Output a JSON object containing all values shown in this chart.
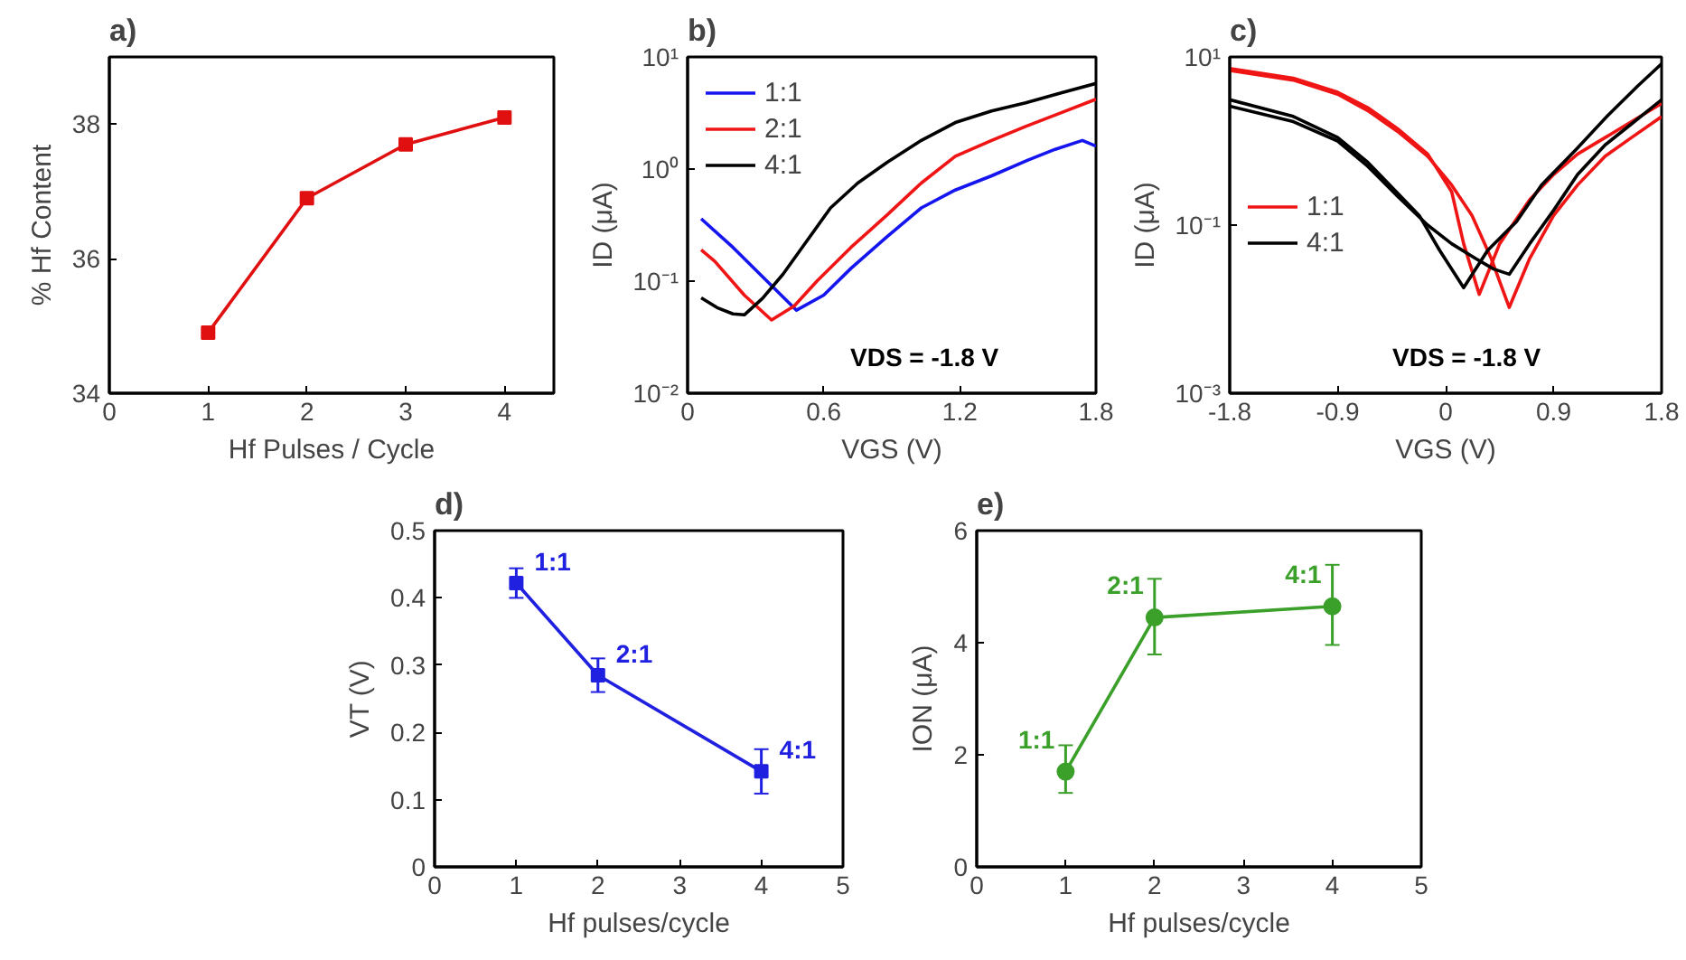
{
  "chart_data": [
    {
      "type": "line",
      "title": "a)",
      "xlabel": "Hf Pulses / Cycle",
      "ylabel": "% Hf Content",
      "x": [
        1,
        2,
        3,
        4
      ],
      "xlim": [
        0,
        4.5
      ],
      "ylim": [
        34,
        39
      ],
      "xticks": [
        0,
        1,
        2,
        3,
        4
      ],
      "yticks": [
        34,
        36,
        38
      ],
      "marker": "square",
      "grid": false,
      "legend": false,
      "series": [
        {
          "color": "#e01010",
          "values": [
            34.9,
            36.9,
            37.7,
            38.1
          ]
        }
      ]
    },
    {
      "type": "line",
      "title": "b)",
      "xlabel": "VGS (V)",
      "ylabel": "ID (μA)",
      "log": "y",
      "xlim": [
        0,
        1.8
      ],
      "ylim": [
        0.01,
        10
      ],
      "xticks": [
        0,
        0.6,
        1.2,
        1.8
      ],
      "yticks": [
        {
          "value": 0.01,
          "label": "10⁻²"
        },
        {
          "value": 0.1,
          "label": "10⁻¹"
        },
        {
          "value": 1,
          "label": "10⁰"
        },
        {
          "value": 10,
          "label": "10¹"
        }
      ],
      "legend": "top left",
      "grid": false,
      "marker": "none",
      "annotations": [
        "VDS = -1.8 V"
      ],
      "series": [
        {
          "name": "1:1",
          "color": "#1515f0",
          "x": [
            0.06,
            0.2,
            0.35,
            0.48,
            0.6,
            0.72,
            0.88,
            1.03,
            1.18,
            1.34,
            1.5,
            1.62,
            1.74,
            1.8
          ],
          "values": [
            0.36,
            0.2,
            0.1,
            0.055,
            0.075,
            0.13,
            0.25,
            0.45,
            0.65,
            0.87,
            1.2,
            1.5,
            1.8,
            1.6
          ]
        },
        {
          "name": "2:1",
          "color": "#f01515",
          "x": [
            0.06,
            0.12,
            0.25,
            0.37,
            0.47,
            0.57,
            0.72,
            0.88,
            1.03,
            1.18,
            1.34,
            1.49,
            1.65,
            1.8
          ],
          "values": [
            0.19,
            0.15,
            0.075,
            0.045,
            0.06,
            0.1,
            0.2,
            0.39,
            0.75,
            1.3,
            1.8,
            2.4,
            3.2,
            4.2
          ]
        },
        {
          "name": "4:1",
          "color": "#000000",
          "x": [
            0.06,
            0.13,
            0.2,
            0.25,
            0.33,
            0.42,
            0.52,
            0.63,
            0.75,
            0.88,
            1.03,
            1.18,
            1.34,
            1.49,
            1.65,
            1.8
          ],
          "values": [
            0.071,
            0.058,
            0.051,
            0.05,
            0.07,
            0.115,
            0.22,
            0.45,
            0.75,
            1.15,
            1.8,
            2.6,
            3.3,
            3.9,
            4.8,
            5.8
          ]
        }
      ]
    },
    {
      "type": "line",
      "title": "c)",
      "xlabel": "VGS (V)",
      "ylabel": "ID (μA)",
      "log": "y",
      "xlim": [
        -1.8,
        1.8
      ],
      "ylim": [
        0.001,
        10
      ],
      "xticks": [
        -1.8,
        -0.9,
        0,
        0.9,
        1.8
      ],
      "yticks": [
        {
          "value": 0.001,
          "label": "10⁻³"
        },
        {
          "value": 0.1,
          "label": "10⁻¹"
        },
        {
          "value": 10,
          "label": "10¹"
        }
      ],
      "legend": "left",
      "grid": false,
      "marker": "none",
      "annotations": [
        "VDS = -1.8 V"
      ],
      "series": [
        {
          "name": "1:1",
          "color": "#f01515",
          "x": [
            -1.8,
            -1.27,
            -0.9,
            -0.65,
            -0.4,
            -0.15,
            0.05,
            0.22,
            0.38,
            0.53,
            0.7,
            0.9,
            1.1,
            1.33,
            1.55,
            1.8
          ],
          "values": [
            6.9,
            5.3,
            3.6,
            2.3,
            1.3,
            0.66,
            0.3,
            0.13,
            0.04,
            0.0105,
            0.04,
            0.13,
            0.3,
            0.66,
            1.1,
            1.95
          ]
        },
        {
          "color": "#f01515",
          "x": [
            -1.8,
            -1.27,
            -0.9,
            -0.65,
            -0.4,
            -0.15,
            0.05,
            0.15,
            0.28,
            0.45,
            0.7,
            0.9,
            1.1,
            1.33,
            1.55,
            1.8
          ],
          "values": [
            7.3,
            5.6,
            3.8,
            2.5,
            1.4,
            0.7,
            0.25,
            0.06,
            0.015,
            0.06,
            0.2,
            0.4,
            0.7,
            1.1,
            1.7,
            2.8
          ]
        },
        {
          "name": "4:1",
          "color": "#000000",
          "x": [
            -1.8,
            -1.27,
            -0.9,
            -0.65,
            -0.4,
            -0.22,
            -0.05,
            0.15,
            0.35,
            0.59,
            0.8,
            1.09,
            1.35,
            1.6,
            1.8
          ],
          "values": [
            3.1,
            1.96,
            1.1,
            0.56,
            0.24,
            0.13,
            0.05,
            0.018,
            0.05,
            0.11,
            0.3,
            0.8,
            2.0,
            4.5,
            8.3
          ]
        },
        {
          "color": "#000000",
          "x": [
            -1.8,
            -1.27,
            -0.9,
            -0.65,
            -0.4,
            -0.15,
            0.05,
            0.25,
            0.4,
            0.53,
            0.7,
            0.9,
            1.1,
            1.33,
            1.55,
            1.8
          ],
          "values": [
            2.6,
            1.7,
            1.0,
            0.5,
            0.22,
            0.1,
            0.06,
            0.04,
            0.03,
            0.026,
            0.06,
            0.15,
            0.4,
            0.9,
            1.6,
            3.1
          ]
        }
      ]
    },
    {
      "type": "line",
      "title": "d)",
      "xlabel": "Hf pulses/cycle",
      "ylabel": "VT (V)",
      "x": [
        1,
        2,
        4
      ],
      "xlim": [
        0,
        5
      ],
      "ylim": [
        0,
        0.5
      ],
      "xticks": [
        0,
        1,
        2,
        3,
        4,
        5
      ],
      "yticks": [
        0,
        0.1,
        0.2,
        0.3,
        0.4,
        0.5
      ],
      "marker": "square",
      "grid": false,
      "legend": false,
      "annotations": [
        {
          "text": "1:1",
          "x": 1,
          "y": 0.422
        },
        {
          "text": "2:1",
          "x": 2,
          "y": 0.285
        },
        {
          "text": "4:1",
          "x": 4,
          "y": 0.142
        }
      ],
      "series": [
        {
          "color": "#2020e0",
          "values": [
            0.422,
            0.285,
            0.142
          ],
          "errors": [
            0.022,
            0.025,
            0.033
          ]
        }
      ]
    },
    {
      "type": "line",
      "title": "e)",
      "xlabel": "Hf pulses/cycle",
      "ylabel": "ION (μA)",
      "x": [
        1,
        2,
        4
      ],
      "xlim": [
        0,
        5
      ],
      "ylim": [
        0,
        6
      ],
      "xticks": [
        0,
        1,
        2,
        3,
        4,
        5
      ],
      "yticks": [
        0,
        2,
        4,
        6
      ],
      "marker": "circle",
      "grid": false,
      "legend": false,
      "annotations": [
        {
          "text": "1:1",
          "x": 1,
          "y": 1.7
        },
        {
          "text": "2:1",
          "x": 2,
          "y": 4.45
        },
        {
          "text": "4:1",
          "x": 4,
          "y": 4.65
        }
      ],
      "series": [
        {
          "color": "#3aa02a",
          "values": [
            1.7,
            4.45,
            4.65
          ],
          "errors": [
            [
              1.32,
              2.17
            ],
            [
              3.79,
              5.14
            ],
            [
              3.96,
              5.39
            ]
          ]
        }
      ]
    }
  ]
}
